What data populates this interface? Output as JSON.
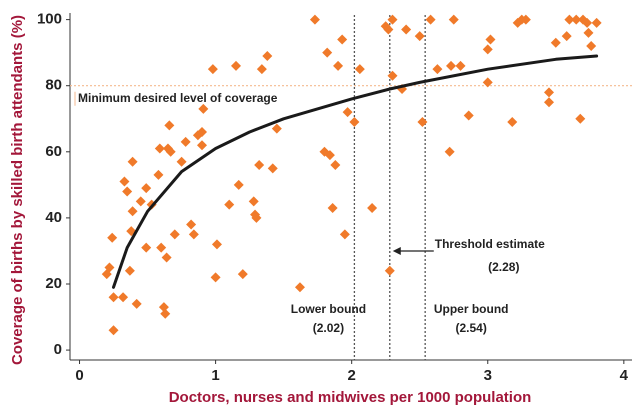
{
  "chart_data": {
    "type": "scatter",
    "x_label": "Doctors, nurses and midwives per 1000 population",
    "y_label": "Coverage of births by skilled birth attendants (%)",
    "xlim": [
      -0.07,
      4.06
    ],
    "ylim": [
      -3,
      102
    ],
    "xticks": [
      0,
      1,
      2,
      3,
      4
    ],
    "yticks": [
      0,
      20,
      40,
      60,
      80,
      100
    ],
    "points": {
      "color": "#f07a2a",
      "x": [
        0.2,
        0.22,
        0.24,
        0.25,
        0.25,
        0.32,
        0.33,
        0.35,
        0.37,
        0.38,
        0.39,
        0.39,
        0.42,
        0.45,
        0.49,
        0.49,
        0.53,
        0.58,
        0.59,
        0.6,
        0.62,
        0.63,
        0.64,
        0.65,
        0.66,
        0.67,
        0.7,
        0.75,
        0.78,
        0.82,
        0.84,
        0.87,
        0.9,
        0.9,
        0.91,
        0.98,
        1.0,
        1.01,
        1.1,
        1.15,
        1.17,
        1.2,
        1.28,
        1.29,
        1.3,
        1.32,
        1.34,
        1.38,
        1.42,
        1.45,
        1.62,
        1.73,
        1.8,
        1.82,
        1.84,
        1.86,
        1.88,
        1.9,
        1.93,
        1.95,
        1.97,
        2.02,
        2.06,
        2.15,
        2.25,
        2.27,
        2.28,
        2.3,
        2.3,
        2.37,
        2.4,
        2.5,
        2.52,
        2.58,
        2.63,
        2.72,
        2.73,
        2.75,
        2.8,
        2.86,
        3.0,
        3.0,
        3.02,
        3.18,
        3.22,
        3.25,
        3.28,
        3.45,
        3.45,
        3.5,
        3.58,
        3.6,
        3.65,
        3.68,
        3.7,
        3.73,
        3.74,
        3.76,
        3.8
      ],
      "y": [
        23,
        25,
        34,
        16,
        6,
        16,
        51,
        48,
        24,
        36,
        42,
        57,
        14,
        45,
        31,
        49,
        44,
        53,
        61,
        31,
        13,
        11,
        28,
        61,
        68,
        60,
        35,
        57,
        63,
        38,
        35,
        65,
        62,
        66,
        73,
        85,
        22,
        32,
        44,
        86,
        50,
        23,
        45,
        41,
        40,
        56,
        85,
        89,
        55,
        67,
        19,
        100,
        60,
        90,
        59,
        43,
        56,
        86,
        94,
        35,
        72,
        69,
        85,
        43,
        98,
        97,
        24,
        100,
        83,
        79,
        97,
        95,
        69,
        100,
        85,
        60,
        86,
        100,
        86,
        71,
        81,
        91,
        94,
        69,
        99,
        100,
        100,
        75,
        78,
        93,
        95,
        100,
        100,
        70,
        100,
        99,
        96,
        92,
        99
      ]
    },
    "curve": {
      "color": "#1a1a1a",
      "x": [
        0.25,
        0.35,
        0.5,
        0.75,
        1.0,
        1.25,
        1.5,
        2.0,
        2.28,
        2.5,
        3.0,
        3.5,
        3.8
      ],
      "y": [
        19,
        31,
        42,
        54,
        61,
        66,
        70,
        76,
        79,
        81,
        85,
        88,
        89
      ]
    },
    "hline": {
      "value": 80,
      "label": "Minimum desired level of coverage",
      "color": "#f5b98f"
    },
    "vlines": [
      {
        "name": "Lower bound",
        "value": 2.02,
        "label": "(2.02)"
      },
      {
        "name": "Threshold estimate",
        "value": 2.28,
        "label": "(2.28)"
      },
      {
        "name": "Upper bound",
        "value": 2.54,
        "label": "(2.54)"
      }
    ]
  }
}
